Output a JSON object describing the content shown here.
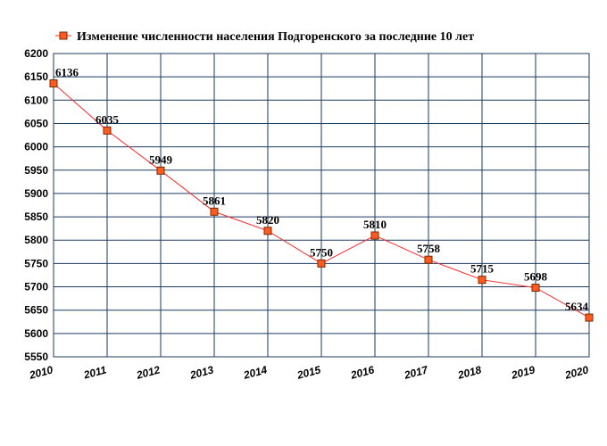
{
  "chart_data": {
    "type": "line",
    "title": "",
    "xlabel": "",
    "ylabel": "",
    "x": [
      "2010",
      "2011",
      "2012",
      "2013",
      "2014",
      "2015",
      "2016",
      "2017",
      "2018",
      "2019",
      "2020"
    ],
    "series": [
      {
        "name": "Изменение численности населения Подгоренского за последние 10 лет",
        "values": [
          6136,
          6035,
          5949,
          5861,
          5820,
          5750,
          5810,
          5758,
          5715,
          5698,
          5634
        ],
        "color": "#ff2a2a",
        "marker_color": "#ff5a1f"
      }
    ],
    "ylim": [
      5550,
      6200
    ],
    "ytick_step": 50,
    "grid": true,
    "grid_color": "#1f3a5f",
    "legend_position": "top-left",
    "data_labels": true
  }
}
